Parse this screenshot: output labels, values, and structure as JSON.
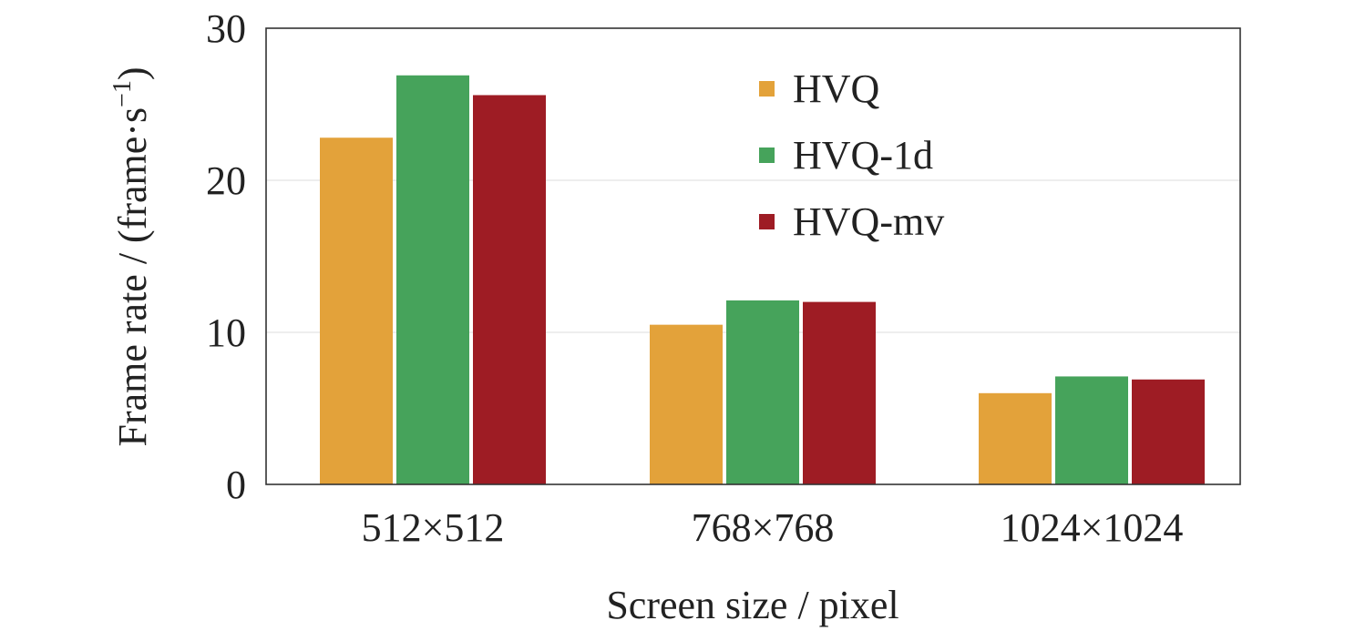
{
  "chart_data": {
    "type": "bar",
    "title": "",
    "xlabel": "Screen size / pixel",
    "ylabel": {
      "prefix": "Frame rate / (frame·s",
      "superscript": "−1",
      "suffix": ")"
    },
    "categories": [
      "512×512",
      "768×768",
      "1024×1024"
    ],
    "series": [
      {
        "name": "HVQ",
        "values": [
          22.8,
          10.5,
          6.0
        ],
        "color": "#E3A23A"
      },
      {
        "name": "HVQ-1d",
        "values": [
          26.9,
          12.1,
          7.1
        ],
        "color": "#46A35B"
      },
      {
        "name": "HVQ-mv",
        "values": [
          25.6,
          12.0,
          6.9
        ],
        "color": "#9E1C24"
      }
    ],
    "ylim": [
      0,
      30
    ],
    "yticks": [
      0,
      10,
      20,
      30
    ],
    "grid": "horizontal",
    "legend_position": "top-right"
  }
}
